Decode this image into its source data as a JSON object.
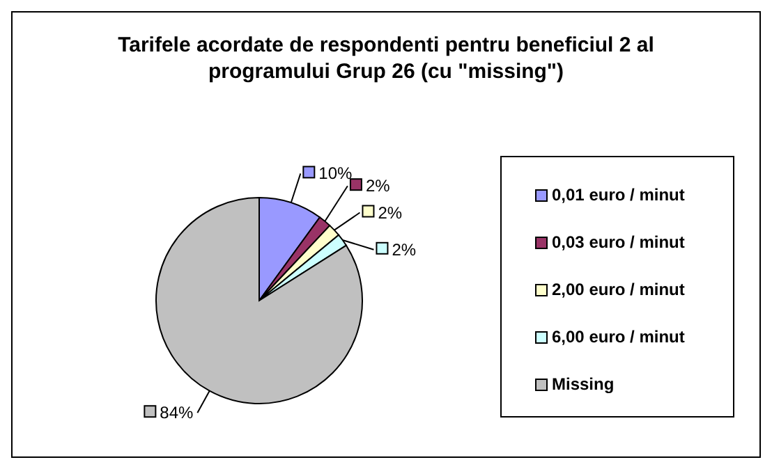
{
  "chart_data": {
    "type": "pie",
    "title": "Tarifele acordate de respondenti pentru beneficiul 2 al programului Grup 26 (cu \"missing\")",
    "categories": [
      "0,01 euro / minut",
      "0,03 euro / minut",
      "2,00 euro / minut",
      "6,00 euro / minut",
      "Missing"
    ],
    "values": [
      10,
      2,
      2,
      2,
      84
    ],
    "colors": [
      "#9999ff",
      "#993366",
      "#ffffcc",
      "#ccffff",
      "#c0c0c0"
    ],
    "value_labels": [
      "10%",
      "2%",
      "2%",
      "2%",
      "84%"
    ],
    "legend": "right"
  }
}
